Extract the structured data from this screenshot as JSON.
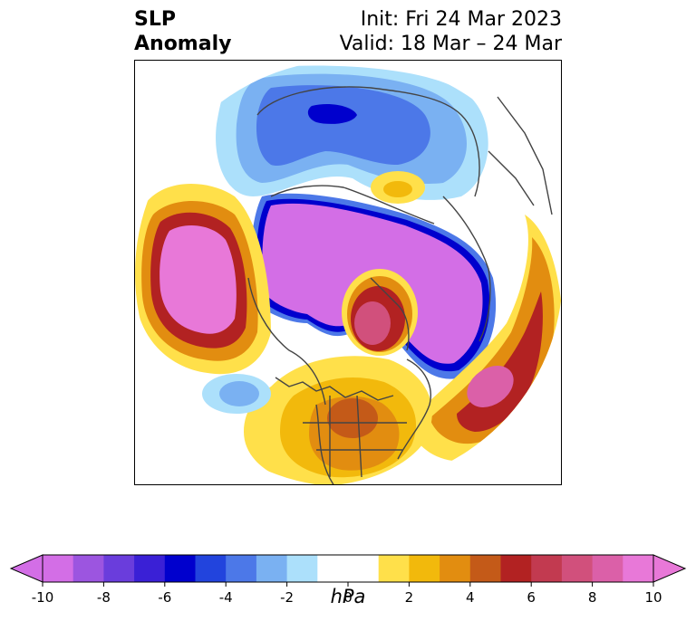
{
  "title": {
    "variable": "SLP",
    "variable2": "Anomaly",
    "init": "Init: Fri 24 Mar 2023",
    "valid": "Valid: 18 Mar – 24 Mar"
  },
  "colorbar": {
    "label": "hPa",
    "ticks": [
      "-10",
      "-8",
      "-6",
      "-4",
      "-2",
      "0",
      "2",
      "4",
      "6",
      "8",
      "10"
    ],
    "range": [
      -10,
      10
    ],
    "step": 1,
    "extend": "both",
    "colors": [
      "#d36ee6",
      "#9c55e0",
      "#6a3ddc",
      "#3a20d6",
      "#0000cd",
      "#2244dd",
      "#4c78e8",
      "#7ab1f2",
      "#ace0fb",
      "#ffffff",
      "#ffffff",
      "#ffe04a",
      "#f2b90c",
      "#e28d10",
      "#c45a18",
      "#b22222",
      "#c23a50",
      "#d1507c",
      "#db60a8",
      "#e878d8"
    ]
  },
  "map": {
    "projection": "polar stereographic",
    "colors": {
      "neg10": "#d36ee6",
      "neg8": "#9c55e0",
      "neg6": "#0000cd",
      "neg4": "#4c78e8",
      "neg3": "#7ab1f2",
      "neg2": "#ace0fb",
      "pos2": "#ffe04a",
      "pos3": "#f2b90c",
      "pos4": "#e28d10",
      "pos5": "#c45a18",
      "pos6": "#b22222",
      "pos7": "#c23a50",
      "pos8": "#d1507c",
      "pos9": "#db60a8",
      "pos10": "#e878d8",
      "coast": "#444444"
    }
  }
}
